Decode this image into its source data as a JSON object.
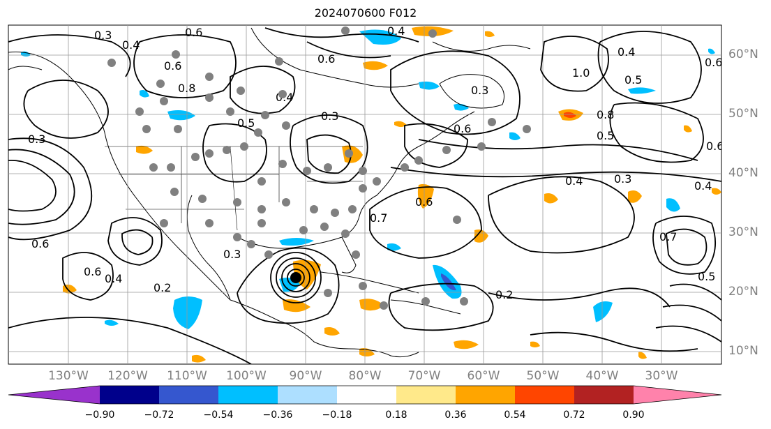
{
  "title": "2024070600 F012",
  "longitude_labels": [
    "130°W",
    "120°W",
    "110°W",
    "100°W",
    "90°W",
    "80°W",
    "70°W",
    "60°W",
    "50°W",
    "40°W",
    "30°W"
  ],
  "latitude_labels": [
    "60°N",
    "50°N",
    "40°N",
    "30°N",
    "20°N",
    "10°N"
  ],
  "colorbar": {
    "ticks": [
      "−0.90",
      "−0.72",
      "−0.54",
      "−0.36",
      "−0.18",
      "0.18",
      "0.36",
      "0.54",
      "0.72",
      "0.90"
    ],
    "colors": [
      "#9932CC",
      "#00008B",
      "#3557CF",
      "#00BFFF",
      "#ADDFFF",
      "#FFFFFF",
      "#FFE98A",
      "#FFA500",
      "#FF4500",
      "#B22222",
      "#FF82AB"
    ]
  },
  "contour_labels": [
    "0.3",
    "0.6",
    "0.4",
    "0.6",
    "0.3",
    "0.8",
    "0.4",
    "0.5",
    "0.6",
    "0.3",
    "0.3",
    "0.4",
    "0.6",
    "0.5",
    "0.7",
    "0.8",
    "0.6",
    "0.6",
    "0.2",
    "0.3",
    "0.4",
    "0.6",
    "1.0",
    "0.4",
    "0.5",
    "0.6",
    "0.4",
    "0.3",
    "0.2",
    "0.4",
    "0.7",
    "0.6",
    "0.5"
  ],
  "colors": {
    "grid": "#999999",
    "coast": "#000000",
    "contour": "#000000",
    "station": "#808080"
  }
}
